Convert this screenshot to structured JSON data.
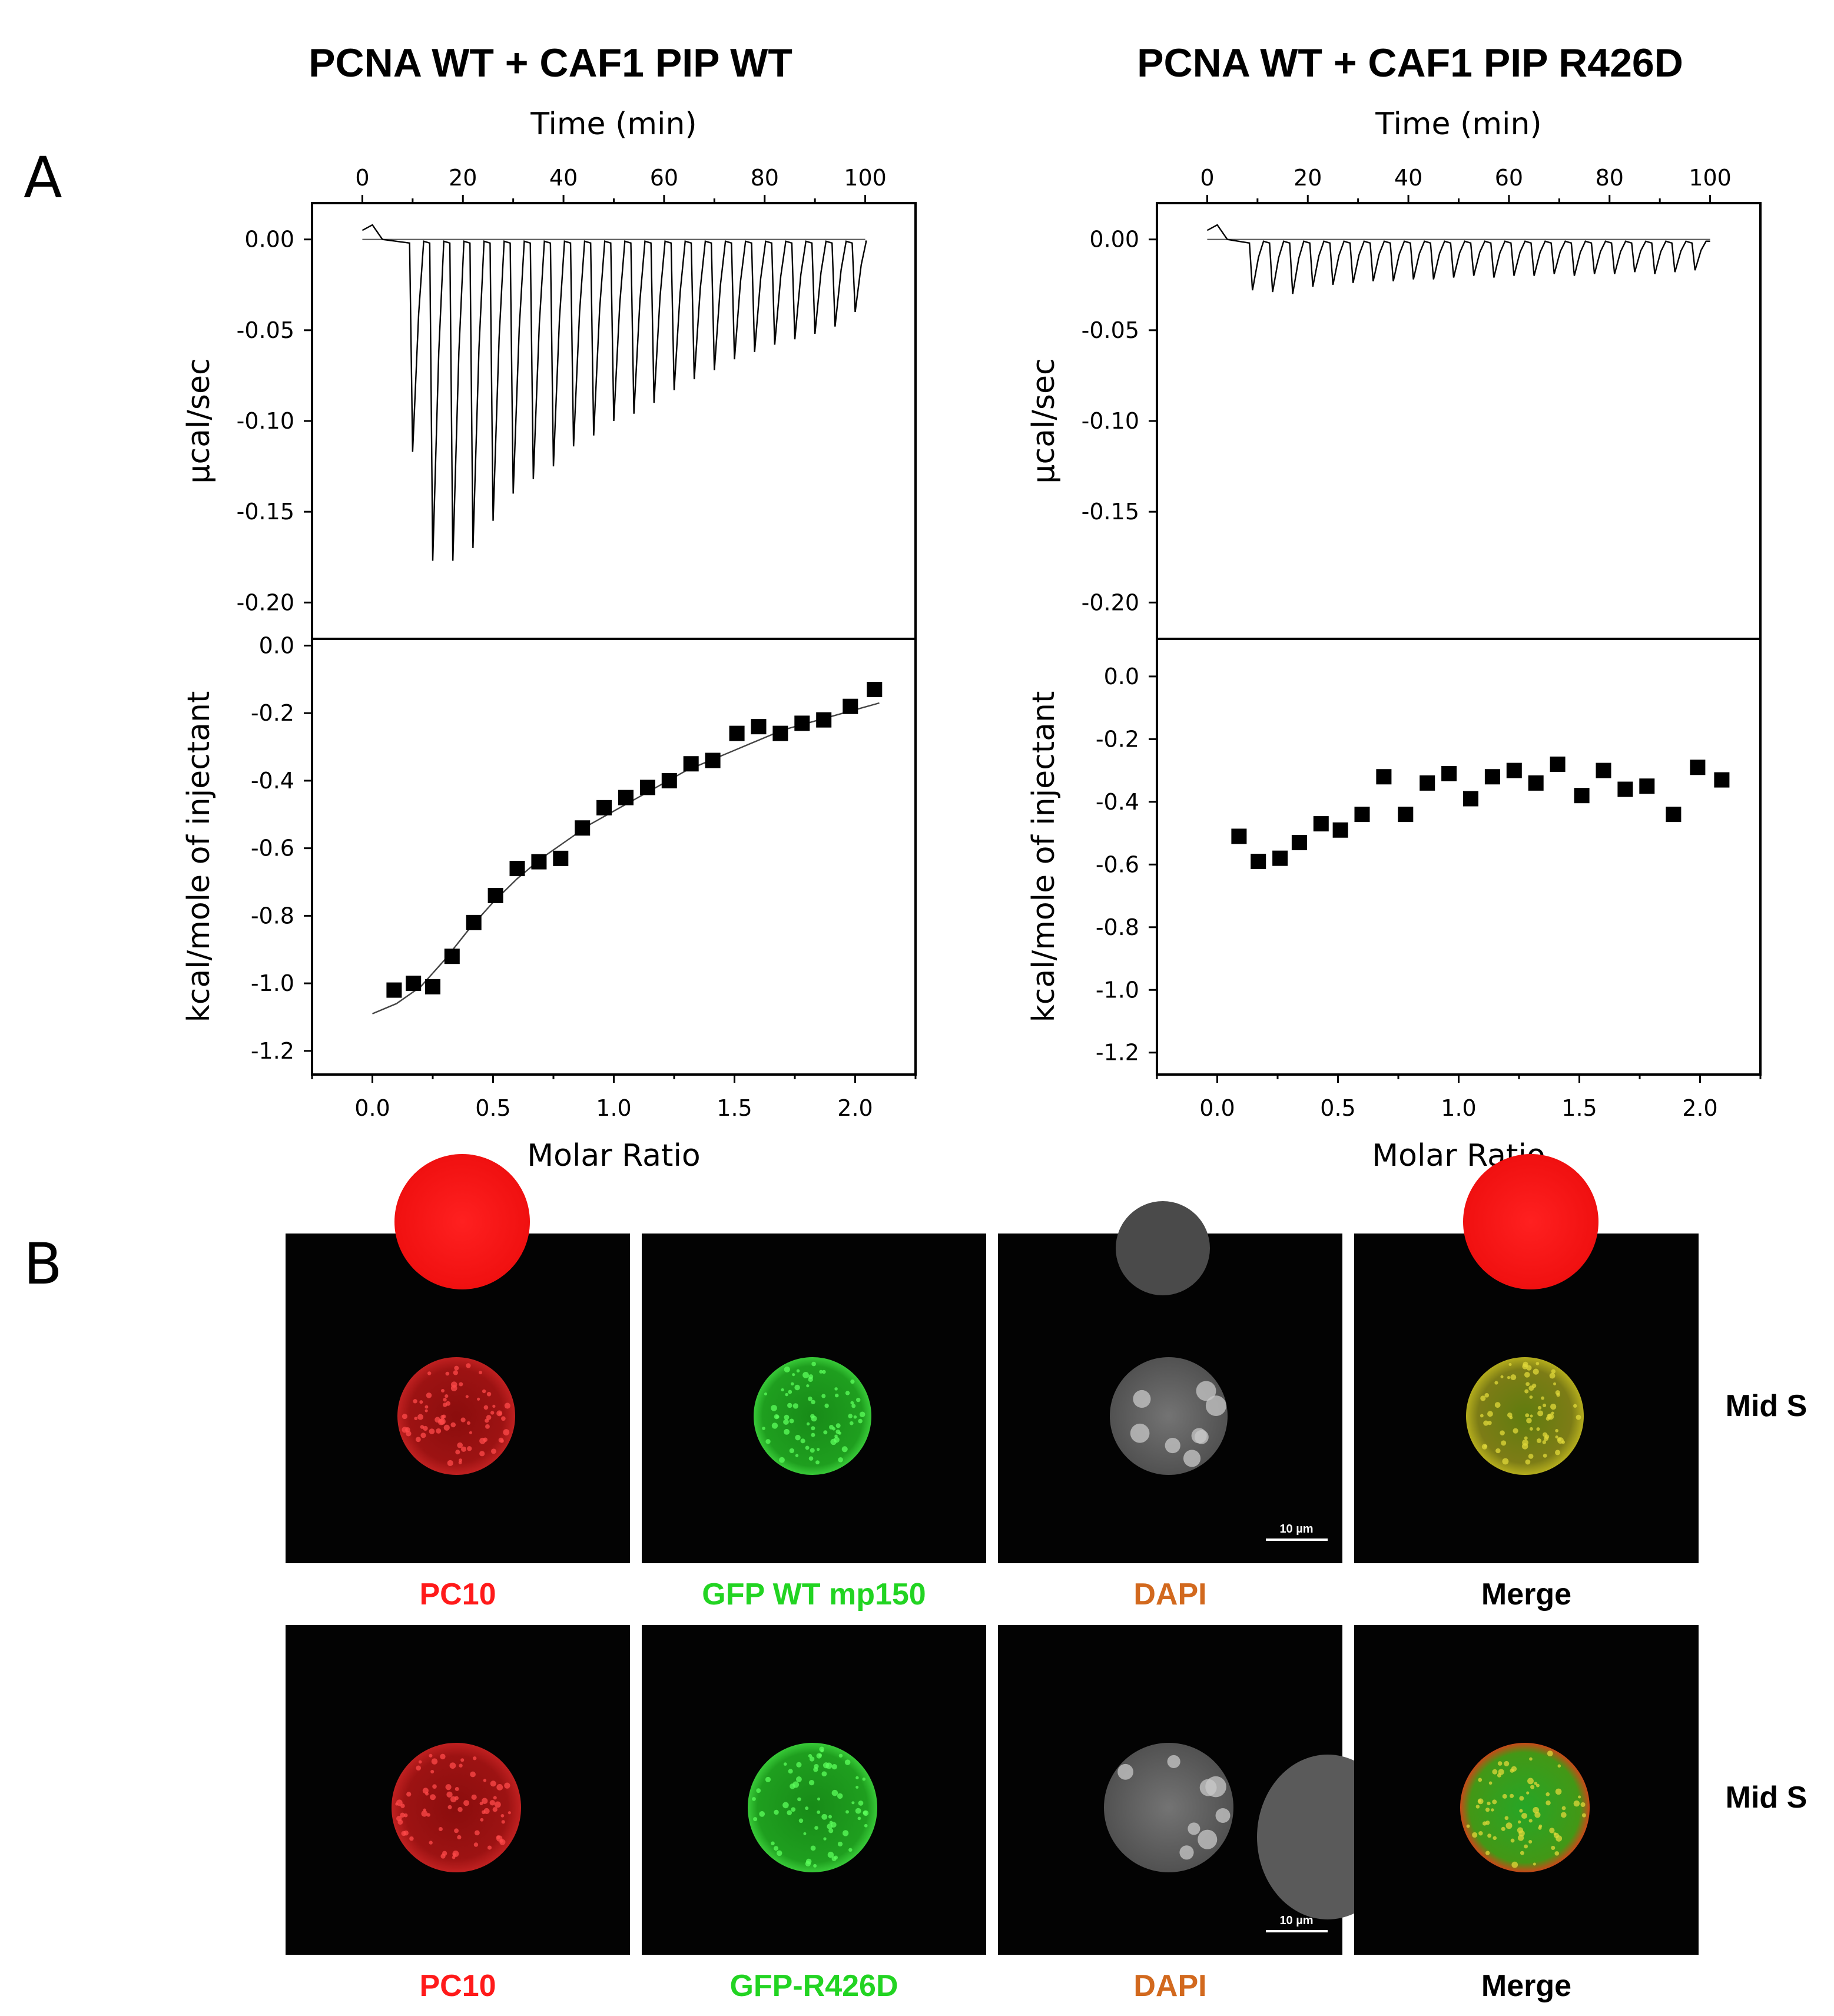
{
  "panel_labels": {
    "a": "A",
    "b": "B"
  },
  "chart_data": [
    {
      "id": "wt",
      "type": "scatter",
      "title": "PCNA WT + CAF1 PIP WT",
      "top": {
        "xlabel": "Time (min)",
        "ylabel": "µcal/sec",
        "xlim": [
          -10,
          110
        ],
        "ylim": [
          -0.22,
          0.02
        ],
        "xticks": [
          0,
          20,
          40,
          60,
          80,
          100
        ],
        "yticks": [
          0.0,
          -0.05,
          -0.1,
          -0.15,
          -0.2
        ],
        "ytick_labels": [
          "0.00",
          "-0.05",
          "-0.10",
          "-0.15",
          "-0.20"
        ],
        "baseline": 0.0,
        "peaks": [
          {
            "t": 10,
            "h": -0.117
          },
          {
            "t": 14,
            "h": -0.177
          },
          {
            "t": 18,
            "h": -0.177
          },
          {
            "t": 22,
            "h": -0.17
          },
          {
            "t": 26,
            "h": -0.155
          },
          {
            "t": 30,
            "h": -0.14
          },
          {
            "t": 34,
            "h": -0.132
          },
          {
            "t": 38,
            "h": -0.125
          },
          {
            "t": 42,
            "h": -0.114
          },
          {
            "t": 46,
            "h": -0.108
          },
          {
            "t": 50,
            "h": -0.1
          },
          {
            "t": 54,
            "h": -0.096
          },
          {
            "t": 58,
            "h": -0.09
          },
          {
            "t": 62,
            "h": -0.083
          },
          {
            "t": 66,
            "h": -0.077
          },
          {
            "t": 70,
            "h": -0.072
          },
          {
            "t": 74,
            "h": -0.066
          },
          {
            "t": 78,
            "h": -0.062
          },
          {
            "t": 82,
            "h": -0.058
          },
          {
            "t": 86,
            "h": -0.055
          },
          {
            "t": 90,
            "h": -0.052
          },
          {
            "t": 94,
            "h": -0.048
          },
          {
            "t": 98,
            "h": -0.04
          }
        ]
      },
      "bottom": {
        "xlabel": "Molar Ratio",
        "ylabel": "kcal/mole of injectant",
        "xlim": [
          -0.25,
          2.25
        ],
        "ylim": [
          -1.27,
          0.02
        ],
        "xticks": [
          0.0,
          0.5,
          1.0,
          1.5,
          2.0
        ],
        "xtick_labels": [
          "0.0",
          "0.5",
          "1.0",
          "1.5",
          "2.0"
        ],
        "yticks": [
          0.0,
          -0.2,
          -0.4,
          -0.6,
          -0.8,
          -1.0,
          -1.2
        ],
        "ytick_labels": [
          "0.0",
          "-0.2",
          "-0.4",
          "-0.6",
          "-0.8",
          "-1.0",
          "-1.2"
        ],
        "x": [
          0.09,
          0.17,
          0.25,
          0.33,
          0.42,
          0.51,
          0.6,
          0.69,
          0.78,
          0.87,
          0.96,
          1.05,
          1.14,
          1.23,
          1.32,
          1.41,
          1.51,
          1.6,
          1.69,
          1.78,
          1.87,
          1.98,
          2.08
        ],
        "y": [
          -1.02,
          -1.0,
          -1.01,
          -0.92,
          -0.82,
          -0.74,
          -0.66,
          -0.64,
          -0.63,
          -0.54,
          -0.48,
          -0.45,
          -0.42,
          -0.4,
          -0.35,
          -0.34,
          -0.26,
          -0.24,
          -0.26,
          -0.23,
          -0.22,
          -0.18,
          -0.13
        ],
        "fit_x": [
          0.0,
          0.1,
          0.2,
          0.3,
          0.4,
          0.5,
          0.6,
          0.7,
          0.8,
          0.9,
          1.0,
          1.1,
          1.2,
          1.3,
          1.4,
          1.5,
          1.6,
          1.7,
          1.8,
          1.9,
          2.0,
          2.1
        ],
        "fit_y": [
          -1.09,
          -1.06,
          -1.01,
          -0.93,
          -0.84,
          -0.76,
          -0.69,
          -0.63,
          -0.58,
          -0.53,
          -0.49,
          -0.45,
          -0.41,
          -0.37,
          -0.34,
          -0.31,
          -0.28,
          -0.25,
          -0.23,
          -0.21,
          -0.19,
          -0.17
        ]
      }
    },
    {
      "id": "mut",
      "type": "scatter",
      "title": "PCNA WT + CAF1 PIP R426D",
      "top": {
        "xlabel": "Time (min)",
        "ylabel": "µcal/sec",
        "xlim": [
          -10,
          110
        ],
        "ylim": [
          -0.22,
          0.02
        ],
        "xticks": [
          0,
          20,
          40,
          60,
          80,
          100
        ],
        "yticks": [
          0.0,
          -0.05,
          -0.1,
          -0.15,
          -0.2
        ],
        "ytick_labels": [
          "0.00",
          "-0.05",
          "-0.10",
          "-0.15",
          "-0.20"
        ],
        "baseline": 0.0,
        "peaks": [
          {
            "t": 9,
            "h": -0.028
          },
          {
            "t": 13,
            "h": -0.029
          },
          {
            "t": 17,
            "h": -0.03
          },
          {
            "t": 21,
            "h": -0.026
          },
          {
            "t": 25,
            "h": -0.025
          },
          {
            "t": 29,
            "h": -0.024
          },
          {
            "t": 33,
            "h": -0.023
          },
          {
            "t": 37,
            "h": -0.023
          },
          {
            "t": 41,
            "h": -0.022
          },
          {
            "t": 45,
            "h": -0.022
          },
          {
            "t": 49,
            "h": -0.021
          },
          {
            "t": 53,
            "h": -0.02
          },
          {
            "t": 57,
            "h": -0.021
          },
          {
            "t": 61,
            "h": -0.02
          },
          {
            "t": 65,
            "h": -0.02
          },
          {
            "t": 69,
            "h": -0.019
          },
          {
            "t": 73,
            "h": -0.02
          },
          {
            "t": 77,
            "h": -0.019
          },
          {
            "t": 81,
            "h": -0.019
          },
          {
            "t": 85,
            "h": -0.018
          },
          {
            "t": 89,
            "h": -0.019
          },
          {
            "t": 93,
            "h": -0.018
          },
          {
            "t": 97,
            "h": -0.017
          }
        ]
      },
      "bottom": {
        "xlabel": "Molar Ratio",
        "ylabel": "kcal/mole of injectant",
        "xlim": [
          -0.25,
          2.25
        ],
        "ylim": [
          -1.27,
          0.12
        ],
        "xticks": [
          0.0,
          0.5,
          1.0,
          1.5,
          2.0
        ],
        "xtick_labels": [
          "0.0",
          "0.5",
          "1.0",
          "1.5",
          "2.0"
        ],
        "yticks": [
          0.0,
          -0.2,
          -0.4,
          -0.6,
          -0.8,
          -1.0,
          -1.2
        ],
        "ytick_labels": [
          "0.0",
          "-0.2",
          "-0.4",
          "-0.6",
          "-0.8",
          "-1.0",
          "-1.2"
        ],
        "x": [
          0.09,
          0.17,
          0.26,
          0.34,
          0.43,
          0.51,
          0.6,
          0.69,
          0.78,
          0.87,
          0.96,
          1.05,
          1.14,
          1.23,
          1.32,
          1.41,
          1.51,
          1.6,
          1.69,
          1.78,
          1.89,
          1.99,
          2.09
        ],
        "y": [
          -0.51,
          -0.59,
          -0.58,
          -0.53,
          -0.47,
          -0.49,
          -0.44,
          -0.32,
          -0.44,
          -0.34,
          -0.31,
          -0.39,
          -0.32,
          -0.3,
          -0.34,
          -0.28,
          -0.38,
          -0.3,
          -0.36,
          -0.35,
          -0.44,
          -0.29,
          -0.33
        ]
      }
    }
  ],
  "microscopy": {
    "rows": [
      {
        "condition": "Mid S",
        "panels": [
          {
            "label": "PC10",
            "label_color": "#ff1a1a",
            "channel": "red"
          },
          {
            "label": "GFP WT mp150",
            "label_color": "#22d422",
            "channel": "green"
          },
          {
            "label": "DAPI",
            "label_color": "#d2691e",
            "channel": "gray",
            "scale_bar": "10 µm"
          },
          {
            "label": "Merge",
            "label_color": "#000000",
            "channel": "merge"
          }
        ]
      },
      {
        "condition": "Mid S",
        "panels": [
          {
            "label": "PC10",
            "label_color": "#ff1a1a",
            "channel": "red"
          },
          {
            "label": "GFP-R426D",
            "label_color": "#22d422",
            "channel": "green"
          },
          {
            "label": "DAPI",
            "label_color": "#d2691e",
            "channel": "gray",
            "scale_bar": "10 µm"
          },
          {
            "label": "Merge",
            "label_color": "#000000",
            "channel": "merge"
          }
        ]
      }
    ]
  }
}
